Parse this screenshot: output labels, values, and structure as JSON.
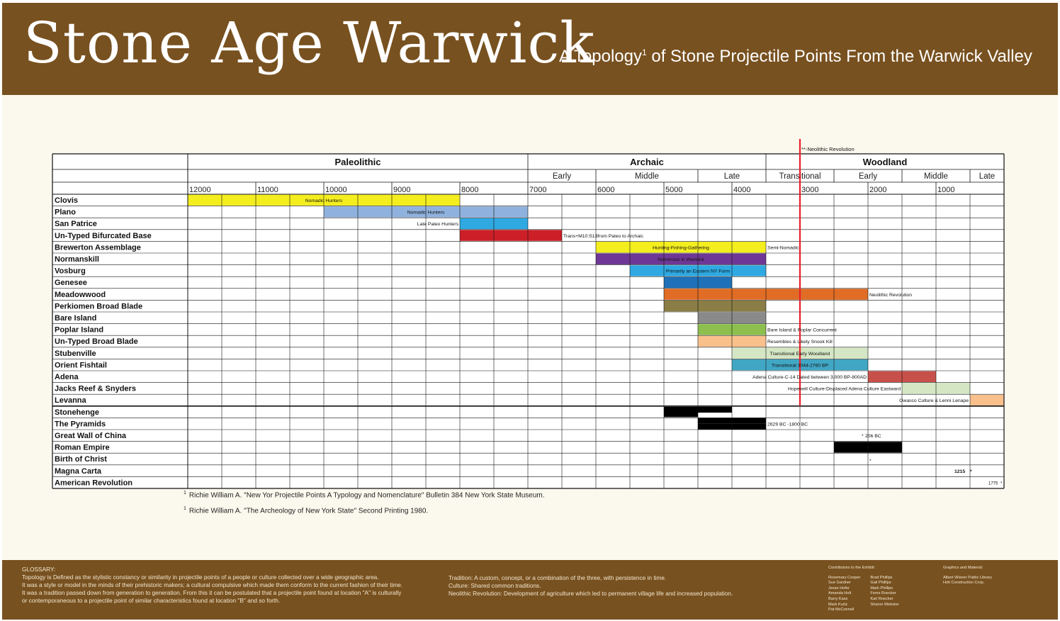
{
  "header": {
    "title": "Stone Age Warwick",
    "subtitle_pre": "A Topology",
    "subtitle_sup": "1",
    "subtitle_post": " of Stone Projectile Points From the Warwick Valley"
  },
  "chart_data": {
    "type": "timeline",
    "x_unit": "years BC",
    "xlim": [
      12000,
      0
    ],
    "periods": [
      {
        "name": "Paleolithic",
        "start": 12000,
        "end": 7000
      },
      {
        "name": "Archaic",
        "start": 7000,
        "end": 3500
      },
      {
        "name": "Woodland",
        "start": 3500,
        "end": 0
      }
    ],
    "subperiods": [
      {
        "name": "Early",
        "start": 7000,
        "end": 6000
      },
      {
        "name": "Middle",
        "start": 6000,
        "end": 4500
      },
      {
        "name": "Late",
        "start": 4500,
        "end": 3500
      },
      {
        "name": "Transitional",
        "start": 3500,
        "end": 2500
      },
      {
        "name": "Early",
        "start": 2500,
        "end": 1500
      },
      {
        "name": "Middle",
        "start": 1500,
        "end": 500
      },
      {
        "name": "Late",
        "start": 500,
        "end": 0
      }
    ],
    "ticks": [
      "12000",
      "11000",
      "10000",
      "9000",
      "8000",
      "7000",
      "6000",
      "5000",
      "4000",
      "3000",
      "2000",
      "1000"
    ],
    "tick_values": [
      12000,
      11000,
      10000,
      9000,
      8000,
      7000,
      6000,
      5000,
      4000,
      3000,
      2000,
      1000
    ],
    "neolithic_marker": {
      "x": 3000,
      "label": "**-Neolithic Revolution",
      "color": "#e8202a"
    },
    "rows": [
      {
        "name": "Clovis",
        "start": 12000,
        "end": 8000,
        "color": "#f4ee1f",
        "label": "Nomadic Hunters",
        "label_pos": "inside"
      },
      {
        "name": "Plano",
        "start": 10000,
        "end": 7000,
        "color": "#8fb1dd",
        "label": "Nomadic Hunters",
        "label_pos": "inside"
      },
      {
        "name": "San Patrice",
        "start": 8000,
        "end": 7000,
        "color": "#2ea9e2",
        "label": "Late Paleo Hunters",
        "label_pos": "left"
      },
      {
        "name": "Un-Typed Bifurcated Base",
        "start": 8000,
        "end": 6500,
        "color": "#cc1f27",
        "label": "Trans+M10:S13from Paleo to Archaic",
        "label_pos": "right"
      },
      {
        "name": "Brewerton Assemblage",
        "start": 6000,
        "end": 3500,
        "color": "#f4ee1f",
        "label": "Hunting-Fishing-Gathering",
        "label_pos": "inside",
        "label2": "Semi-Nomadic"
      },
      {
        "name": "Normanskill",
        "start": 6000,
        "end": 3500,
        "color": "#6f3795",
        "label": "Numerous in Warwick",
        "label_pos": "inside"
      },
      {
        "name": "Vosburg",
        "start": 5500,
        "end": 3500,
        "color": "#2ea9e2",
        "label": "Primarily an Eastern NY Form",
        "label_pos": "inside"
      },
      {
        "name": "Genesee",
        "start": 5000,
        "end": 4000,
        "color": "#1e71b8",
        "label": "",
        "label_pos": "none"
      },
      {
        "name": "Meadowwood",
        "start": 5000,
        "end": 2000,
        "color": "#e06c25",
        "label": "Neolithic Revolution",
        "label_pos": "right"
      },
      {
        "name": "Perkiomen Broad Blade",
        "start": 5000,
        "end": 3500,
        "color": "#8a7d45",
        "label": "",
        "label_pos": "none"
      },
      {
        "name": "Bare Island",
        "start": 4500,
        "end": 3500,
        "color": "#8a8a8a",
        "label": "",
        "label_pos": "none"
      },
      {
        "name": "Poplar Island",
        "start": 4500,
        "end": 3500,
        "color": "#8cbf4d",
        "label": "Bare Island & Poplar Concurrent",
        "label_pos": "right"
      },
      {
        "name": "Un-Typed Broad Blade",
        "start": 4500,
        "end": 3500,
        "color": "#f9c08c",
        "label": "Resembles & Likely Snook Kill",
        "label_pos": "right"
      },
      {
        "name": "Stubenville",
        "start": 4000,
        "end": 2000,
        "color": "#d4e6c4",
        "label": "Transitional Early Woodland",
        "label_pos": "inside"
      },
      {
        "name": "Orient Fishtail",
        "start": 4000,
        "end": 2000,
        "color": "#41a6c4",
        "label": "Transitional 3044-2760 BP",
        "label_pos": "inside"
      },
      {
        "name": "Adena",
        "start": 2000,
        "end": 1000,
        "color": "#c8504a",
        "label": "Adena Culture-C-14 Dated between 3,000 BP-800AD",
        "label_pos": "left"
      },
      {
        "name": "Jacks Reef & Snyders",
        "start": 1500,
        "end": 500,
        "color": "#d4e6c4",
        "label": "Hopewell Culture-Displaced Adena Culture Eastward",
        "label_pos": "left"
      },
      {
        "name": "Levanna",
        "start": 500,
        "end": 0,
        "color": "#f9c08c",
        "label": "Owasco Culture & Lenni Lenape",
        "label_pos": "left"
      },
      {
        "name": "Stonehenge",
        "start": 5000,
        "end": 4000,
        "color": "#000000",
        "label": "",
        "label_pos": "none",
        "start2": 5000,
        "end2": 4500
      },
      {
        "name": "The Pyramids",
        "start": 4500,
        "end": 3500,
        "color": "#000000",
        "label": "2629 BC -1800 BC",
        "label_pos": "right",
        "start2": 4500,
        "end2": 3500
      },
      {
        "name": "Great Wall of China",
        "start": null,
        "end": null,
        "color": "#000000",
        "label": "206 BC",
        "label_pos": "point",
        "point": 2000,
        "marker": "*"
      },
      {
        "name": "Roman Empire",
        "start": 2500,
        "end": 1500,
        "color": "#000000",
        "label": "",
        "label_pos": "none"
      },
      {
        "name": "Birth of Christ",
        "start": null,
        "end": null,
        "color": "#000000",
        "label": "",
        "label_pos": "point",
        "point": 2000,
        "marker": "*"
      },
      {
        "name": "Magna Carta",
        "start": null,
        "end": null,
        "color": "#000000",
        "label": "1215",
        "label_pos": "point",
        "point": 500,
        "marker": "*"
      },
      {
        "name": "American Revolution",
        "start": null,
        "end": null,
        "color": "#000000",
        "label": "1775",
        "label_pos": "point",
        "point": 0,
        "marker": "*"
      }
    ]
  },
  "footnotes": [
    {
      "sup": "1",
      "text": "Richie William A. \"New Yor Projectile Points A Typology and Nomenclature\"  Bulletin 384 New York State Museum."
    },
    {
      "sup": "1",
      "text": "Richie William A.  \"The Archeology of New York State\" Second Printing 1980."
    }
  ],
  "footer": {
    "glossary_title": "GLOSSARY:",
    "glossary_lines": [
      "Topology is Defined as the stylistic constancy or similarity in projectile points of a people or culture collected over a wide geographic area.",
      "It was a style or model in the minds of their prehistoric makers; a cultural compulsive which made them conform to the current fashion of their time.",
      "It was a tradition passed down from generation to generation. From this it can be postulated that a projectile point found at location \"A\" is culturally",
      "or contemporaneous to a projectile point of similar characteristics found at location \"B\" and so forth."
    ],
    "glossary2_lines": [
      "Tradition: A custom, concept, or a combination of the three, with persistence in time.",
      "Culture: Shared common traditions.",
      "Neolithic Revolution: Development of agriculture which led to permanent village life and increased population."
    ],
    "contributors_title": "Contributors to the Exhibit:",
    "contributors_col1": [
      "Rosemary Cooper",
      "Sue Gardner",
      "Jesse Hofer",
      "Amanda Holt",
      "Barry Kass",
      "Mark Kurtz",
      "Pat McConnell"
    ],
    "contributors_col2": [
      "Brad Phillips",
      "Gail Phillips",
      "Mark Phillips",
      "Fems Roecker",
      "Karl Roecker",
      "Sharon Webster"
    ],
    "graphics_title": "Graphics and Material:",
    "graphics_lines": [
      "Albert Wisner Public Library",
      "Holt Construction Corp."
    ]
  }
}
